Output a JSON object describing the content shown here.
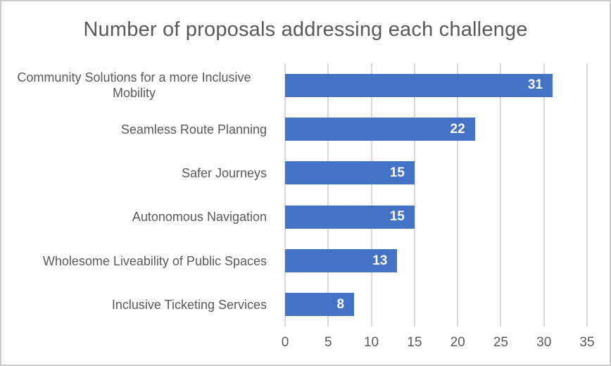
{
  "frame": {
    "background": "#FFFFFF",
    "border_color": "#CBCBCB"
  },
  "chart_data": {
    "type": "bar",
    "orientation": "horizontal",
    "title": "Number of proposals addressing each challenge",
    "categories": [
      "Community Solutions for a more Inclusive Mobility",
      "Seamless Route Planning",
      "Safer Journeys",
      "Autonomous Navigation",
      "Wholesome Liveability of Public Spaces",
      "Inclusive Ticketing Services"
    ],
    "values": [
      31,
      22,
      15,
      15,
      13,
      8
    ],
    "xlabel": "",
    "ylabel": "",
    "xlim": [
      0,
      35
    ],
    "x_ticks": [
      0,
      5,
      10,
      15,
      20,
      25,
      30,
      35
    ],
    "grid": "vertical",
    "legend_position": "none",
    "data_labels_position": "inside-end",
    "colors": {
      "bar": "#4472C4",
      "data_label_text": "#FFFFFF",
      "title_text": "#595959",
      "axis_text": "#595959",
      "gridline": "#D9D9D9"
    }
  }
}
